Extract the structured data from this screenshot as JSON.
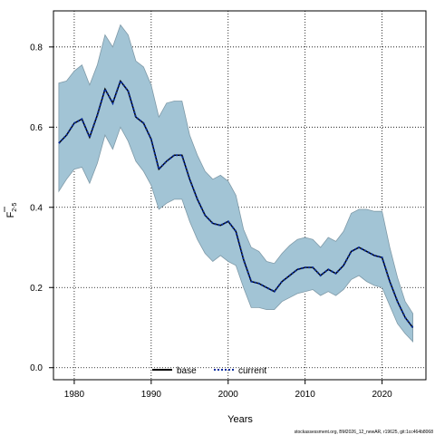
{
  "chart_data": {
    "type": "line",
    "xlabel": "Years",
    "ylabel": "F",
    "ylabel_sub": "2-5",
    "xlim": [
      1977.3,
      2025.7
    ],
    "ylim": [
      -0.03,
      0.89
    ],
    "xticks": [
      1980,
      1990,
      2000,
      2010,
      2020
    ],
    "yticks": [
      0.0,
      0.2,
      0.4,
      0.6,
      0.8
    ],
    "ytick_labels": [
      "0.0",
      "0.2",
      "0.4",
      "0.6",
      "0.8"
    ],
    "grid": true,
    "legend_placement": "bottom-center",
    "x": [
      1978,
      1979,
      1980,
      1981,
      1982,
      1983,
      1984,
      1985,
      1986,
      1987,
      1988,
      1989,
      1990,
      1991,
      1992,
      1993,
      1994,
      1995,
      1996,
      1997,
      1998,
      1999,
      2000,
      2001,
      2002,
      2003,
      2004,
      2005,
      2006,
      2007,
      2008,
      2009,
      2010,
      2011,
      2012,
      2013,
      2014,
      2015,
      2016,
      2017,
      2018,
      2019,
      2020,
      2021,
      2022,
      2023,
      2024
    ],
    "series": [
      {
        "name": "base",
        "style": "solid",
        "color": "#000000",
        "values": [
          0.56,
          0.58,
          0.61,
          0.62,
          0.575,
          0.63,
          0.695,
          0.66,
          0.715,
          0.69,
          0.625,
          0.61,
          0.57,
          0.495,
          0.515,
          0.53,
          0.53,
          0.47,
          0.42,
          0.38,
          0.36,
          0.355,
          0.365,
          0.34,
          0.27,
          0.215,
          0.21,
          0.2,
          0.19,
          0.215,
          0.23,
          0.245,
          0.25,
          0.25,
          0.23,
          0.245,
          0.235,
          0.255,
          0.29,
          0.3,
          0.29,
          0.28,
          0.275,
          0.215,
          0.165,
          0.125,
          0.1
        ]
      },
      {
        "name": "current",
        "style": "dotted",
        "color": "#0a2fa0",
        "values": [
          0.56,
          0.58,
          0.61,
          0.62,
          0.575,
          0.63,
          0.695,
          0.66,
          0.715,
          0.69,
          0.625,
          0.61,
          0.57,
          0.495,
          0.515,
          0.53,
          0.53,
          0.47,
          0.42,
          0.38,
          0.36,
          0.355,
          0.365,
          0.34,
          0.27,
          0.215,
          0.21,
          0.2,
          0.19,
          0.215,
          0.23,
          0.245,
          0.25,
          0.25,
          0.23,
          0.245,
          0.235,
          0.255,
          0.29,
          0.3,
          0.29,
          0.28,
          0.275,
          0.215,
          0.165,
          0.125,
          0.1
        ]
      }
    ],
    "confidence_band": {
      "color": "#a2c4d5",
      "edge_color": "#7f9aa8",
      "lower": [
        0.44,
        0.47,
        0.495,
        0.5,
        0.46,
        0.51,
        0.58,
        0.545,
        0.6,
        0.565,
        0.515,
        0.49,
        0.455,
        0.395,
        0.41,
        0.42,
        0.42,
        0.365,
        0.32,
        0.285,
        0.265,
        0.28,
        0.265,
        0.255,
        0.2,
        0.15,
        0.15,
        0.145,
        0.145,
        0.165,
        0.175,
        0.185,
        0.19,
        0.195,
        0.18,
        0.19,
        0.18,
        0.195,
        0.22,
        0.23,
        0.215,
        0.205,
        0.2,
        0.155,
        0.11,
        0.085,
        0.065
      ],
      "upper": [
        0.71,
        0.715,
        0.74,
        0.755,
        0.705,
        0.755,
        0.83,
        0.8,
        0.855,
        0.83,
        0.765,
        0.75,
        0.705,
        0.625,
        0.66,
        0.665,
        0.665,
        0.58,
        0.53,
        0.49,
        0.47,
        0.48,
        0.465,
        0.43,
        0.345,
        0.3,
        0.29,
        0.265,
        0.26,
        0.285,
        0.305,
        0.32,
        0.325,
        0.32,
        0.3,
        0.325,
        0.315,
        0.34,
        0.385,
        0.395,
        0.395,
        0.39,
        0.39,
        0.3,
        0.225,
        0.165,
        0.135
      ]
    },
    "source": "stockassessment.org, BM2026_12_newAR, r19625, git:1cc464b8068"
  }
}
